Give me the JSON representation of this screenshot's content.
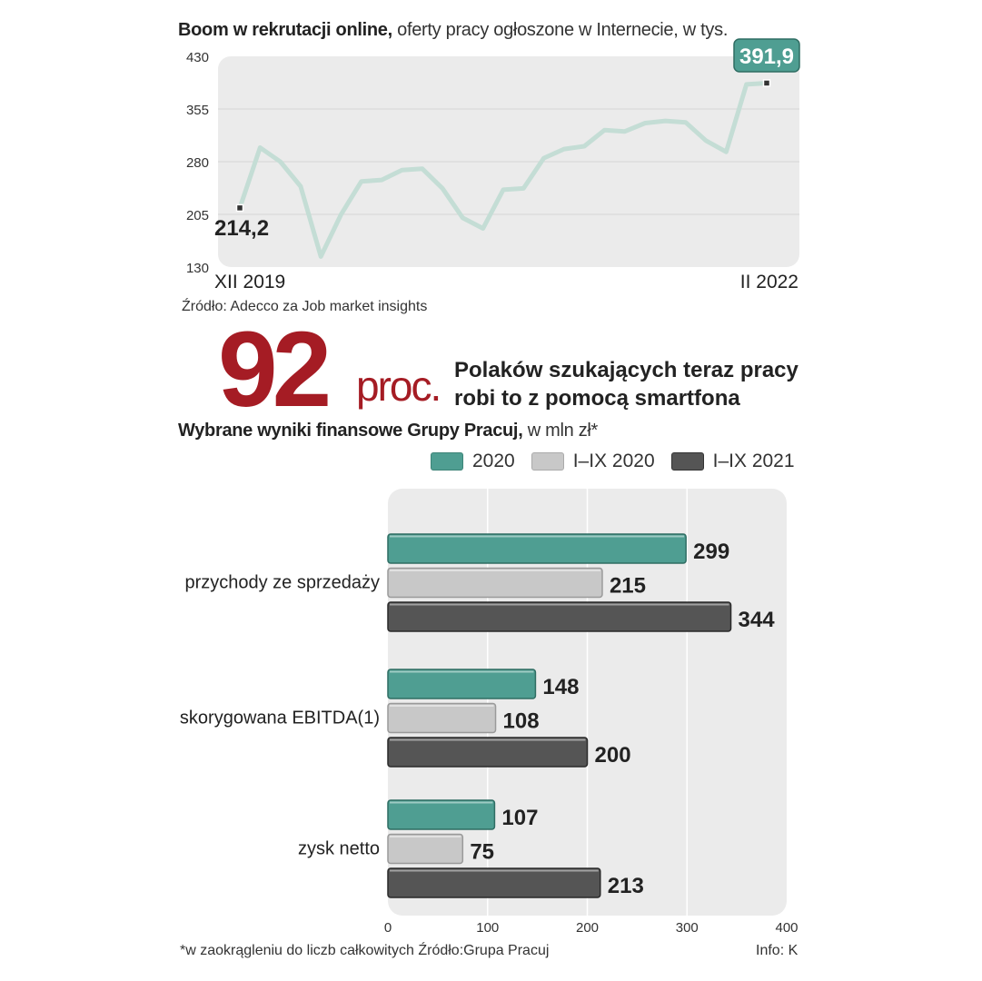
{
  "line_section": {
    "title_bold": "Boom w rekrutacji online,",
    "title_light": " oferty pracy ogłoszone w Internecie, w tys.",
    "source": "Źródło: Adecco za Job market insights"
  },
  "highlight": {
    "number": "92",
    "unit": "proc.",
    "description_line1": "Polaków szukających teraz pracy",
    "description_line2": "robi to z pomocą smartfona"
  },
  "bar_section": {
    "title_bold": "Wybrane wyniki finansowe Grupy Pracuj,",
    "title_light": " w mln zł*"
  },
  "footer": {
    "footnote": "*w zaokrągleniu do  liczb całkowitych Źródło:Grupa Pracuj",
    "info": "Info: K"
  },
  "colors": {
    "teal": "#4f9e92",
    "light_gray": "#c8c8c8",
    "dark_gray": "#555555",
    "line": "#c4ddd5",
    "accent_red": "#a51c24",
    "plot_bg": "#ebebeb"
  },
  "chart_data": [
    {
      "type": "line",
      "title": "Boom w rekrutacji online, oferty pracy ogłoszone w Internecie, w tys.",
      "ylim": [
        130,
        430
      ],
      "yticks": [
        "430",
        "355",
        "280",
        "205",
        "130"
      ],
      "x_start_label": "XII 2019",
      "x_end_label": "II 2022",
      "start_label": "214,2",
      "end_label": "391,9",
      "values": [
        214.2,
        300,
        280,
        245,
        145,
        205,
        252,
        254,
        268,
        270,
        242,
        200,
        185,
        240,
        242,
        285,
        298,
        302,
        325,
        323,
        335,
        338,
        336,
        310,
        294,
        390,
        391.9
      ]
    },
    {
      "type": "bar",
      "orientation": "horizontal",
      "title": "Wybrane wyniki finansowe Grupy Pracuj, w mln zł*",
      "categories": [
        "przychody ze sprzedaży",
        "skorygowana EBITDA(1)",
        "zysk netto"
      ],
      "series": [
        {
          "name": "2020",
          "values": [
            299,
            148,
            107
          ]
        },
        {
          "name": "I–IX 2020",
          "values": [
            215,
            108,
            75
          ]
        },
        {
          "name": "I–IX 2021",
          "values": [
            344,
            200,
            213
          ]
        }
      ],
      "xlim": [
        0,
        400
      ],
      "xticks": [
        "0",
        "100",
        "200",
        "300",
        "400"
      ]
    }
  ]
}
